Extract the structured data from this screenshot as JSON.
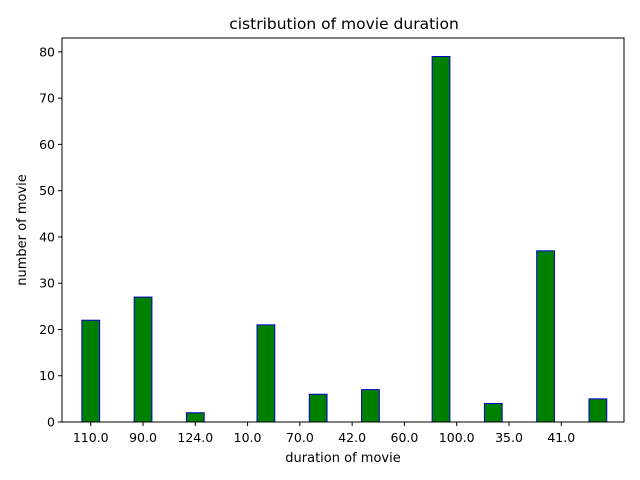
{
  "chart_data": {
    "type": "bar",
    "title": "cistribution of movie duration",
    "xlabel": "duration of movie",
    "ylabel": "number of movie",
    "x": [
      0,
      1,
      2,
      3,
      4,
      5,
      6,
      7,
      8,
      9
    ],
    "x_tick_labels": [
      "110.0",
      "90.0",
      "124.0",
      "10.0",
      "70.0",
      "42.0",
      "60.0",
      "100.0",
      "35.0",
      "41.0"
    ],
    "bar_x": [
      0,
      1,
      2,
      3.35,
      4.35,
      5.35,
      6.7,
      7.7,
      8.7,
      9.7
    ],
    "values": [
      22,
      27,
      2,
      21,
      6,
      7,
      79,
      4,
      37,
      5
    ],
    "ylim": [
      0,
      83
    ],
    "y_ticks": [
      0,
      10,
      20,
      30,
      40,
      50,
      60,
      70,
      80
    ],
    "grid": false,
    "bar_color": "#008000",
    "edge_color": "#0000cc"
  }
}
